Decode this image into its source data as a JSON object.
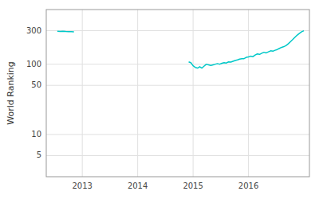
{
  "chart_data": {
    "type": "line",
    "log": "y",
    "grid": true,
    "y_label": "World Ranking",
    "xlim": [
      2012.35,
      2017.1
    ],
    "xticks": [
      2013,
      2014,
      2015,
      2016
    ],
    "ylim": [
      2.5,
      600
    ],
    "yticks": [
      5,
      10,
      50,
      100,
      300
    ],
    "series": [
      {
        "color": "#00c8c8",
        "x": [
          2012.55,
          2012.6,
          2012.65,
          2012.7,
          2012.75,
          2012.8,
          2012.85
        ],
        "values": [
          295,
          293,
          294,
          292,
          291,
          290,
          289
        ]
      },
      {
        "color": "#00c8c8",
        "x": [
          2014.92,
          2014.96,
          2015.0,
          2015.04,
          2015.08,
          2015.12,
          2015.16,
          2015.2,
          2015.24,
          2015.28,
          2015.32,
          2015.36,
          2015.4,
          2015.44,
          2015.48,
          2015.52,
          2015.56,
          2015.6,
          2015.64,
          2015.68,
          2015.72,
          2015.76,
          2015.8,
          2015.84,
          2015.88,
          2015.92,
          2015.96,
          2016.0,
          2016.04,
          2016.08,
          2016.12,
          2016.16,
          2016.2,
          2016.24,
          2016.28,
          2016.32,
          2016.36,
          2016.4,
          2016.44,
          2016.48,
          2016.52,
          2016.56,
          2016.6,
          2016.64,
          2016.68,
          2016.72,
          2016.76,
          2016.8,
          2016.84,
          2016.88,
          2016.92,
          2016.96,
          2017.0
        ],
        "values": [
          108,
          105,
          95,
          90,
          88,
          92,
          88,
          94,
          100,
          98,
          96,
          98,
          100,
          102,
          100,
          103,
          105,
          104,
          108,
          107,
          110,
          113,
          115,
          118,
          120,
          120,
          125,
          127,
          130,
          128,
          135,
          140,
          138,
          143,
          148,
          145,
          150,
          155,
          153,
          158,
          162,
          168,
          174,
          178,
          185,
          196,
          210,
          225,
          242,
          260,
          275,
          290,
          300
        ]
      }
    ]
  }
}
